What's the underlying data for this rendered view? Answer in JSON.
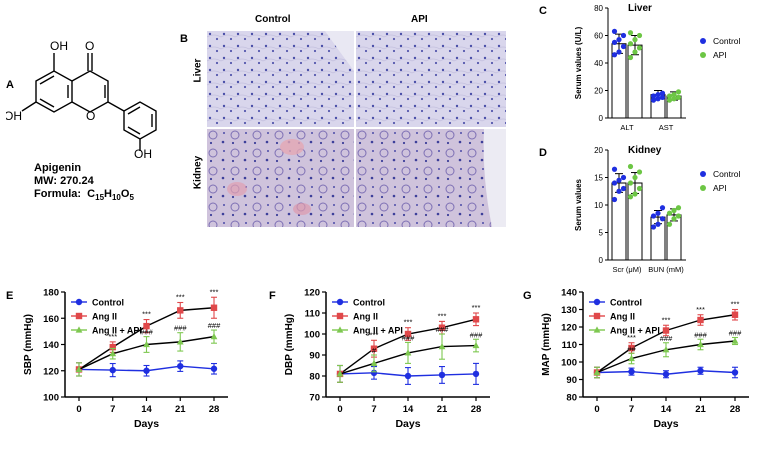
{
  "panelA": {
    "letter": "A",
    "name": "Apigenin",
    "mw": "MW: 270.24",
    "formula_label": "Formula:",
    "formula": "C15H10O5",
    "atoms": {
      "oh1": "OH",
      "oh2": "OH",
      "oh3": "OH",
      "o_ring": "O",
      "o_keto": "O"
    }
  },
  "panelB": {
    "letter": "B",
    "columns": [
      "Control",
      "API"
    ],
    "rows": [
      "Liver",
      "Kidney"
    ]
  },
  "colors": {
    "control": "#1f2fe0",
    "api": "#6cc644",
    "angii": "#e0484a",
    "angii_api": "#7ec850"
  },
  "chart_data": [
    {
      "id": "C",
      "type": "bar",
      "title": "Liver",
      "categories": [
        "ALT",
        "AST"
      ],
      "series": [
        {
          "name": "Control",
          "values": [
            54,
            17
          ],
          "errors": [
            7,
            3
          ],
          "points": [
            [
              46,
              48,
              52,
              55,
              57,
              60,
              63
            ],
            [
              13,
              14,
              15,
              16,
              17,
              18
            ]
          ]
        },
        {
          "name": "API",
          "values": [
            53,
            16
          ],
          "errors": [
            7,
            3
          ],
          "points": [
            [
              44,
              48,
              51,
              54,
              57,
              60,
              62
            ],
            [
              13,
              14,
              15,
              16,
              17,
              19
            ]
          ]
        }
      ],
      "ylabel": "Serum values (U/L)",
      "ylim": [
        0,
        80
      ],
      "yticks": [
        0,
        20,
        40,
        60,
        80
      ],
      "legend": "top-right"
    },
    {
      "id": "D",
      "type": "bar",
      "title": "Kidney",
      "categories": [
        "Scr (μM)",
        "BUN (mM)"
      ],
      "series": [
        {
          "name": "Control",
          "values": [
            14,
            7.8
          ],
          "errors": [
            1.7,
            1.2
          ],
          "points": [
            [
              11,
              12.5,
              13,
              14,
              14.5,
              15,
              16.5
            ],
            [
              6,
              6.5,
              7.5,
              8,
              8.5,
              9.5
            ]
          ]
        },
        {
          "name": "API",
          "values": [
            14,
            8.2
          ],
          "errors": [
            1.9,
            1.1
          ],
          "points": [
            [
              11.5,
              12,
              13,
              14,
              15,
              16,
              17
            ],
            [
              6.5,
              7.5,
              8,
              8.5,
              9,
              9.5
            ]
          ]
        }
      ],
      "ylabel": "Serum values",
      "ylim": [
        0,
        20
      ],
      "yticks": [
        0,
        5,
        10,
        15,
        20
      ],
      "legend": "top-right"
    },
    {
      "id": "E",
      "type": "line",
      "x": [
        0,
        7,
        14,
        21,
        28
      ],
      "series": [
        {
          "name": "Control",
          "values": [
            121,
            120.5,
            120,
            123.5,
            121.5
          ],
          "errors": [
            5,
            5,
            4,
            4,
            4
          ]
        },
        {
          "name": "Ang II",
          "values": [
            121,
            138,
            154,
            166,
            168
          ],
          "errors": [
            5,
            4,
            5,
            6,
            8
          ]
        },
        {
          "name": "Ang II + API",
          "values": [
            121,
            133,
            140,
            142,
            146
          ],
          "errors": [
            5,
            4,
            6,
            7,
            5
          ]
        }
      ],
      "annotations_angii": [
        "",
        "***",
        "***",
        "***",
        "***"
      ],
      "annotations_api": [
        "",
        "",
        "###",
        "###",
        "###"
      ],
      "xlabel": "Days",
      "ylabel": "SBP (mmHg)",
      "ylim": [
        100,
        180
      ],
      "yticks": [
        100,
        120,
        140,
        160,
        180
      ],
      "legend": "top-left"
    },
    {
      "id": "F",
      "type": "line",
      "x": [
        0,
        7,
        14,
        21,
        28
      ],
      "series": [
        {
          "name": "Control",
          "values": [
            81,
            81.5,
            80,
            80.5,
            81
          ],
          "errors": [
            4,
            3,
            4,
            4,
            5
          ]
        },
        {
          "name": "Ang II",
          "values": [
            81,
            93,
            100,
            103,
            107
          ],
          "errors": [
            4,
            4,
            3,
            3,
            3
          ]
        },
        {
          "name": "Ang II + API",
          "values": [
            81,
            86,
            91,
            94,
            94.5
          ],
          "errors": [
            4,
            4,
            5,
            6,
            3
          ]
        }
      ],
      "annotations_angii": [
        "",
        "***",
        "***",
        "***",
        "***"
      ],
      "annotations_api": [
        "",
        "#",
        "###",
        "###",
        "###"
      ],
      "xlabel": "Days",
      "ylabel": "DBP (mmHg)",
      "ylim": [
        70,
        120
      ],
      "yticks": [
        70,
        80,
        90,
        100,
        110,
        120
      ],
      "legend": "top-left"
    },
    {
      "id": "G",
      "type": "line",
      "x": [
        0,
        7,
        14,
        21,
        28
      ],
      "series": [
        {
          "name": "Control",
          "values": [
            94,
            94.5,
            93,
            95,
            94
          ],
          "errors": [
            3,
            2,
            2,
            2,
            3
          ]
        },
        {
          "name": "Ang II",
          "values": [
            94,
            108,
            118,
            124,
            127
          ],
          "errors": [
            3,
            3,
            3,
            3,
            3
          ]
        },
        {
          "name": "Ang II + API",
          "values": [
            94,
            102,
            107,
            110,
            112
          ],
          "errors": [
            3,
            3,
            4,
            3,
            2
          ]
        }
      ],
      "annotations_angii": [
        "",
        "***",
        "***",
        "***",
        "***"
      ],
      "annotations_api": [
        "",
        "##",
        "###",
        "###",
        "###"
      ],
      "xlabel": "Days",
      "ylabel": "MAP (mmHg)",
      "ylim": [
        80,
        140
      ],
      "yticks": [
        80,
        90,
        100,
        110,
        120,
        130,
        140
      ],
      "legend": "top-left"
    }
  ]
}
